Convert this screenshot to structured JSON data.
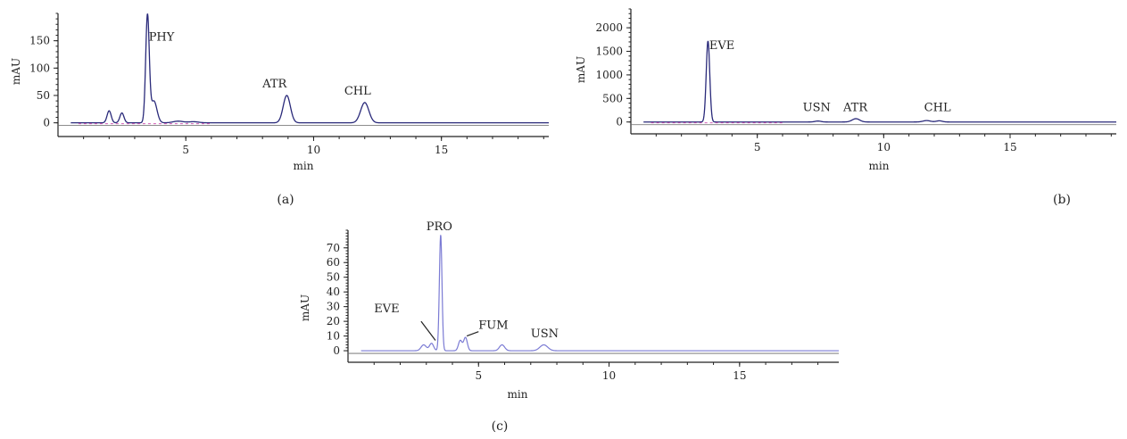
{
  "chart_data": [
    {
      "id": "a",
      "type": "line",
      "panel_label": "(a)",
      "xlabel": "min",
      "ylabel": "mAU",
      "xlim": [
        0,
        19.2
      ],
      "ylim": [
        -12,
        200
      ],
      "xticks": [
        5,
        10,
        15
      ],
      "yticks": [
        0,
        50,
        100,
        150
      ],
      "style": "dark",
      "peaks": [
        {
          "x": 2.0,
          "h": 22,
          "w": 0.08
        },
        {
          "x": 2.5,
          "h": 18,
          "w": 0.08
        },
        {
          "x": 3.5,
          "h": 195,
          "w": 0.07
        },
        {
          "x": 3.75,
          "h": 40,
          "w": 0.12
        },
        {
          "x": 4.7,
          "h": 3,
          "w": 0.2
        },
        {
          "x": 5.3,
          "h": 2,
          "w": 0.2
        },
        {
          "x": 8.95,
          "h": 50,
          "w": 0.14
        },
        {
          "x": 12.0,
          "h": 37,
          "w": 0.16
        }
      ],
      "annotations": [
        {
          "text": "PHY",
          "x": 3.55,
          "y": 150
        },
        {
          "text": "ATR",
          "x": 8.0,
          "y": 65
        },
        {
          "text": "CHL",
          "x": 11.2,
          "y": 52
        }
      ]
    },
    {
      "id": "b",
      "type": "line",
      "panel_label": "(b)",
      "xlabel": "min",
      "ylabel": "mAU",
      "xlim": [
        0,
        19.2
      ],
      "ylim": [
        -100,
        2400
      ],
      "xticks": [
        5,
        10,
        15
      ],
      "yticks": [
        0,
        500,
        1000,
        1500,
        2000
      ],
      "style": "dark",
      "peaks": [
        {
          "x": 3.05,
          "h": 1720,
          "w": 0.07
        },
        {
          "x": 7.4,
          "h": 20,
          "w": 0.12
        },
        {
          "x": 8.9,
          "h": 70,
          "w": 0.15
        },
        {
          "x": 11.7,
          "h": 30,
          "w": 0.15
        },
        {
          "x": 12.2,
          "h": 25,
          "w": 0.12
        }
      ],
      "annotations": [
        {
          "text": "EVE",
          "x": 3.1,
          "y": 1550
        },
        {
          "text": "USN",
          "x": 6.8,
          "y": 230
        },
        {
          "text": "ATR",
          "x": 8.4,
          "y": 230
        },
        {
          "text": "CHL",
          "x": 11.6,
          "y": 230
        }
      ]
    },
    {
      "id": "c",
      "type": "line",
      "panel_label": "(c)",
      "xlabel": "min",
      "ylabel": "mAU",
      "xlim": [
        0,
        18.8
      ],
      "ylim": [
        -3,
        82
      ],
      "xticks": [
        5,
        10,
        15
      ],
      "yticks": [
        0,
        10,
        20,
        30,
        40,
        50,
        60,
        70
      ],
      "style": "light",
      "peaks": [
        {
          "x": 2.9,
          "h": 4,
          "w": 0.1
        },
        {
          "x": 3.2,
          "h": 5,
          "w": 0.08
        },
        {
          "x": 3.55,
          "h": 79,
          "w": 0.05
        },
        {
          "x": 4.3,
          "h": 7,
          "w": 0.07
        },
        {
          "x": 4.5,
          "h": 9,
          "w": 0.07
        },
        {
          "x": 5.9,
          "h": 4,
          "w": 0.1
        },
        {
          "x": 7.5,
          "h": 4,
          "w": 0.15
        }
      ],
      "annotations": [
        {
          "text": "PRO",
          "x": 3.0,
          "y": 82
        },
        {
          "text": "EVE",
          "x": 1.0,
          "y": 26
        },
        {
          "text": "FUM",
          "x": 5.0,
          "y": 15
        },
        {
          "text": "USN",
          "x": 7.0,
          "y": 9
        }
      ],
      "arrows": [
        {
          "from": [
            2.8,
            20
          ],
          "to": [
            3.35,
            7
          ]
        },
        {
          "from": [
            5.0,
            13
          ],
          "to": [
            4.55,
            10
          ]
        }
      ]
    }
  ]
}
